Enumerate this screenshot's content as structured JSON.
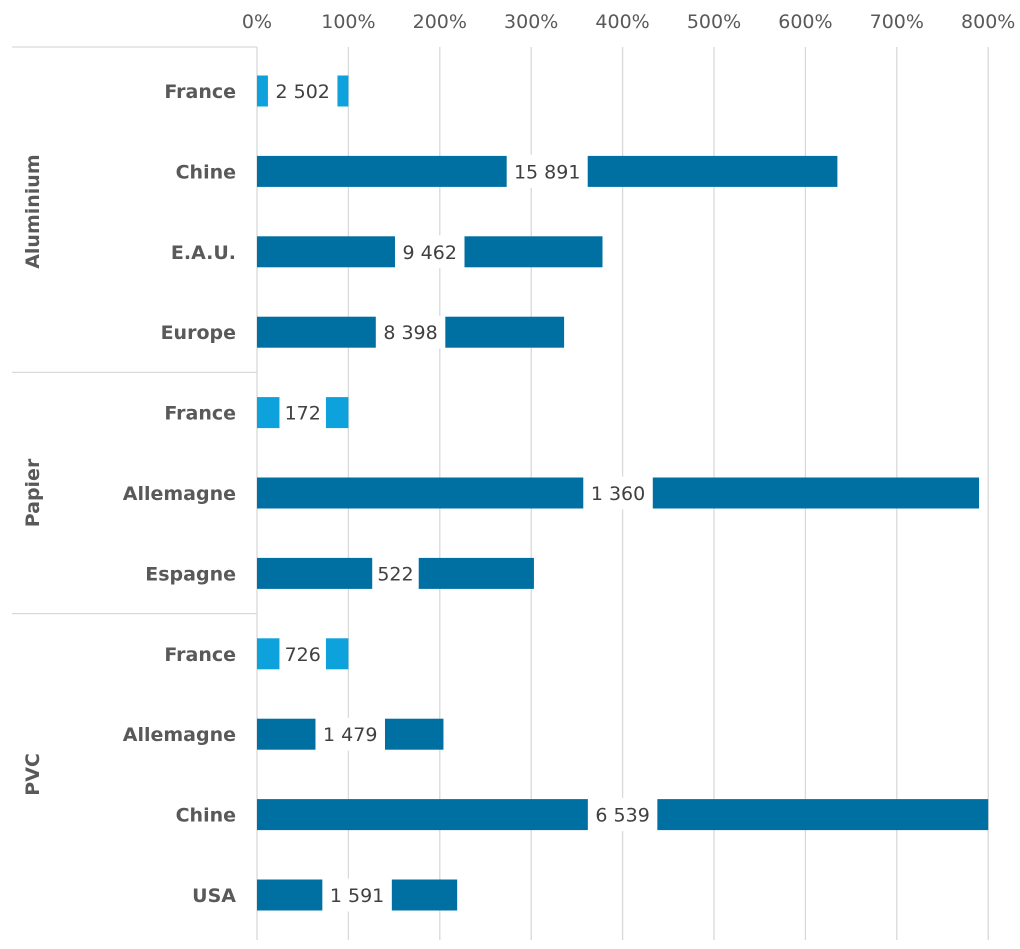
{
  "chart_data": {
    "type": "bar",
    "orientation": "horizontal",
    "xlim": [
      0,
      8
    ],
    "ticks": [
      {
        "value": 0,
        "label": "0%"
      },
      {
        "value": 1,
        "label": "100%"
      },
      {
        "value": 2,
        "label": "200%"
      },
      {
        "value": 3,
        "label": "300%"
      },
      {
        "value": 4,
        "label": "400%"
      },
      {
        "value": 5,
        "label": "500%"
      },
      {
        "value": 6,
        "label": "600%"
      },
      {
        "value": 7,
        "label": "700%"
      },
      {
        "value": 8,
        "label": "800%"
      }
    ],
    "grid": true,
    "colors": {
      "france": "#0ea2dc",
      "other": "#0070a3",
      "grid": "#d9d9d9",
      "separator": "#d9d9d9"
    },
    "groups": [
      {
        "name": "Aluminium",
        "bars": [
          {
            "category": "France",
            "value": 1.0,
            "label": "2 502",
            "highlight": true
          },
          {
            "category": "Chine",
            "value": 6.35,
            "label": "15 891",
            "highlight": false
          },
          {
            "category": "E.A.U.",
            "value": 3.78,
            "label": "9 462",
            "highlight": false
          },
          {
            "category": "Europe",
            "value": 3.36,
            "label": "8 398",
            "highlight": false
          }
        ]
      },
      {
        "name": "Papier",
        "bars": [
          {
            "category": "France",
            "value": 1.0,
            "label": "172",
            "highlight": true
          },
          {
            "category": "Allemagne",
            "value": 7.9,
            "label": "1 360",
            "highlight": false
          },
          {
            "category": "Espagne",
            "value": 3.03,
            "label": "522",
            "highlight": false
          }
        ]
      },
      {
        "name": "PVC",
        "bars": [
          {
            "category": "France",
            "value": 1.0,
            "label": "726",
            "highlight": true
          },
          {
            "category": "Allemagne",
            "value": 2.04,
            "label": "1 479",
            "highlight": false
          },
          {
            "category": "Chine",
            "value": 8.0,
            "label": "6 539",
            "highlight": false
          },
          {
            "category": "USA",
            "value": 2.19,
            "label": "1 591",
            "highlight": false
          }
        ]
      }
    ]
  }
}
